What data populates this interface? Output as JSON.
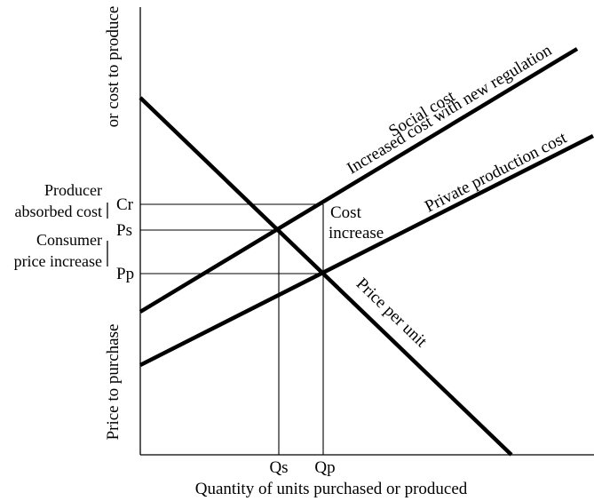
{
  "y_axis": {
    "label_top": "or cost to produce",
    "label_bottom": "Price to purchase"
  },
  "x_axis": {
    "label": "Quantity of units purchased or produced",
    "ticks": {
      "qs": "Qs",
      "qp": "Qp"
    }
  },
  "y_ticks": {
    "cr": "Cr",
    "ps": "Ps",
    "pp": "Pp"
  },
  "brackets": {
    "producer": {
      "line1": "Producer",
      "line2": "absorbed cost"
    },
    "consumer": {
      "line1": "Consumer",
      "line2": "price increase"
    }
  },
  "curves": {
    "social_cost": {
      "line1": "Social cost",
      "line2": "Increased cost with new regulation"
    },
    "private_cost": {
      "label": "Private production cost"
    },
    "price_per_unit": {
      "label": "Price per unit"
    }
  },
  "annotations": {
    "cost_increase": {
      "line1": "Cost",
      "line2": "increase"
    }
  }
}
